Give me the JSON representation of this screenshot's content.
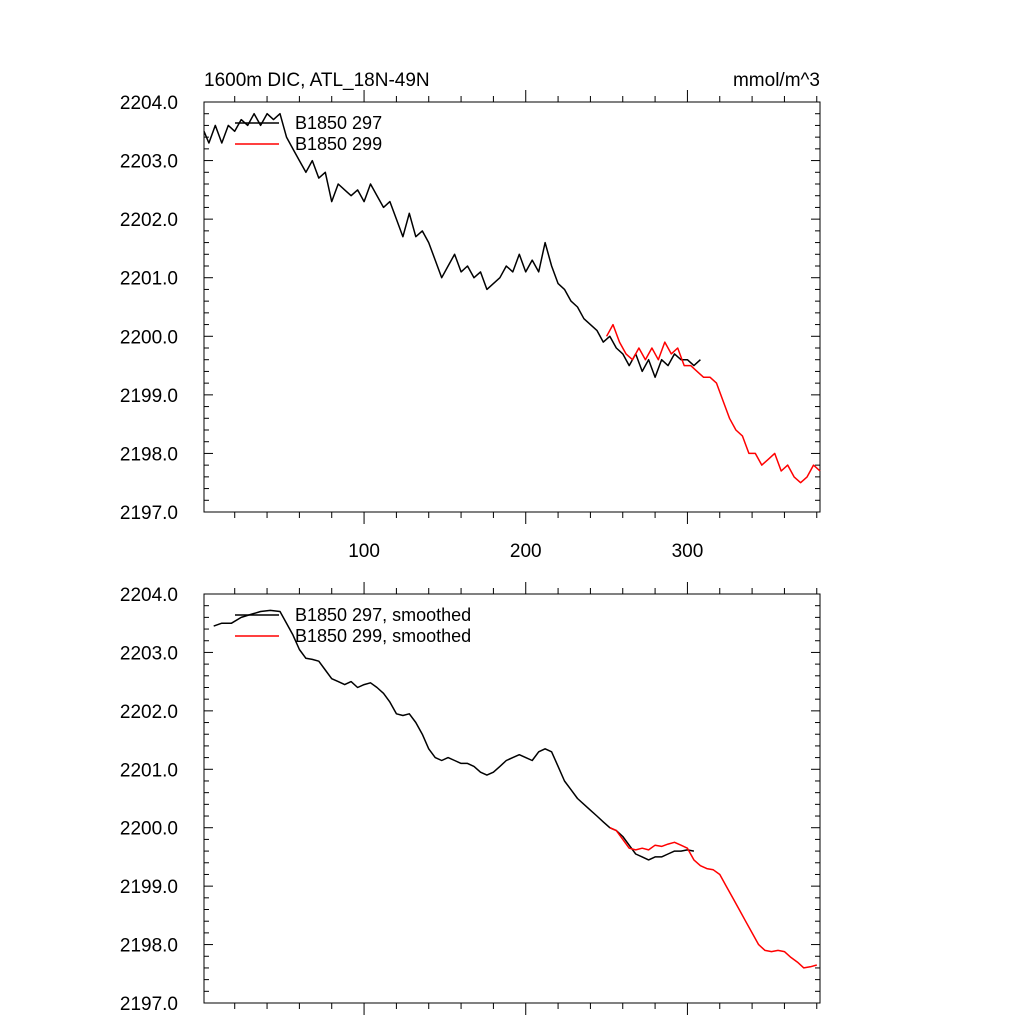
{
  "chart_data": [
    {
      "type": "line",
      "title_left": "1600m DIC, ATL_18N-49N",
      "title_right": "mmol/m^3",
      "xlabel": "",
      "ylabel": "",
      "xlim": [
        1,
        382
      ],
      "ylim": [
        2197.0,
        2204.0
      ],
      "y_ticks": [
        2197.0,
        2198.0,
        2199.0,
        2200.0,
        2201.0,
        2202.0,
        2203.0,
        2204.0
      ],
      "y_tick_labels": [
        "2197.0",
        "2198.0",
        "2199.0",
        "2200.0",
        "2201.0",
        "2202.0",
        "2203.0",
        "2204.0"
      ],
      "x_ticks": [
        100,
        200,
        300
      ],
      "x_tick_labels": [
        "100",
        "200",
        "300"
      ],
      "show_x_tick_labels": true,
      "legend_position": "top-left",
      "series": [
        {
          "name": "B1850 297",
          "color": "#000000",
          "x": [
            1,
            4,
            8,
            12,
            16,
            20,
            24,
            28,
            32,
            36,
            40,
            44,
            48,
            52,
            56,
            60,
            64,
            68,
            72,
            76,
            80,
            84,
            88,
            92,
            96,
            100,
            104,
            108,
            112,
            116,
            120,
            124,
            128,
            132,
            136,
            140,
            144,
            148,
            152,
            156,
            160,
            164,
            168,
            172,
            176,
            180,
            184,
            188,
            192,
            196,
            200,
            204,
            208,
            212,
            216,
            220,
            224,
            228,
            232,
            236,
            240,
            244,
            248,
            252,
            256,
            260,
            264,
            268,
            272,
            276,
            280,
            284,
            288,
            292,
            296,
            300,
            304,
            308
          ],
          "y": [
            2203.5,
            2203.3,
            2203.6,
            2203.3,
            2203.6,
            2203.5,
            2203.7,
            2203.6,
            2203.8,
            2203.6,
            2203.8,
            2203.7,
            2203.8,
            2203.4,
            2203.2,
            2203.0,
            2202.8,
            2203.0,
            2202.7,
            2202.8,
            2202.3,
            2202.6,
            2202.5,
            2202.4,
            2202.5,
            2202.3,
            2202.6,
            2202.4,
            2202.2,
            2202.3,
            2202.0,
            2201.7,
            2202.1,
            2201.7,
            2201.8,
            2201.6,
            2201.3,
            2201.0,
            2201.2,
            2201.4,
            2201.1,
            2201.2,
            2201.0,
            2201.1,
            2200.8,
            2200.9,
            2201.0,
            2201.2,
            2201.1,
            2201.4,
            2201.1,
            2201.3,
            2201.1,
            2201.6,
            2201.2,
            2200.9,
            2200.8,
            2200.6,
            2200.5,
            2200.3,
            2200.2,
            2200.1,
            2199.9,
            2200.0,
            2199.8,
            2199.7,
            2199.5,
            2199.7,
            2199.4,
            2199.6,
            2199.3,
            2199.6,
            2199.5,
            2199.7,
            2199.6,
            2199.6,
            2199.5,
            2199.6
          ]
        },
        {
          "name": "B1850 299",
          "color": "#ff0000",
          "x": [
            250,
            254,
            258,
            262,
            266,
            270,
            274,
            278,
            282,
            286,
            290,
            294,
            298,
            302,
            306,
            310,
            314,
            318,
            322,
            326,
            330,
            334,
            338,
            342,
            346,
            350,
            354,
            358,
            362,
            366,
            370,
            374,
            378,
            382
          ],
          "y": [
            2200.0,
            2200.2,
            2199.9,
            2199.7,
            2199.6,
            2199.8,
            2199.6,
            2199.8,
            2199.6,
            2199.9,
            2199.7,
            2199.8,
            2199.5,
            2199.5,
            2199.4,
            2199.3,
            2199.3,
            2199.2,
            2198.9,
            2198.6,
            2198.4,
            2198.3,
            2198.0,
            2198.0,
            2197.8,
            2197.9,
            2198.0,
            2197.7,
            2197.8,
            2197.6,
            2197.5,
            2197.6,
            2197.8,
            2197.7
          ]
        }
      ]
    },
    {
      "type": "line",
      "title_left": "",
      "title_right": "",
      "xlabel": "",
      "ylabel": "",
      "xlim": [
        1,
        382
      ],
      "ylim": [
        2197.0,
        2204.0
      ],
      "y_ticks": [
        2197.0,
        2198.0,
        2199.0,
        2200.0,
        2201.0,
        2202.0,
        2203.0,
        2204.0
      ],
      "y_tick_labels": [
        "2197.0",
        "2198.0",
        "2199.0",
        "2200.0",
        "2201.0",
        "2202.0",
        "2203.0",
        "2204.0"
      ],
      "x_ticks": [
        100,
        200,
        300
      ],
      "x_tick_labels": [],
      "show_x_tick_labels": false,
      "legend_position": "top-left",
      "series": [
        {
          "name": "B1850 297, smoothed",
          "color": "#000000",
          "x": [
            7,
            12,
            18,
            24,
            30,
            36,
            42,
            48,
            52,
            56,
            60,
            64,
            68,
            72,
            76,
            80,
            84,
            88,
            92,
            96,
            100,
            104,
            108,
            112,
            116,
            120,
            124,
            128,
            132,
            136,
            140,
            144,
            148,
            152,
            156,
            160,
            164,
            168,
            172,
            176,
            180,
            184,
            188,
            192,
            196,
            200,
            204,
            208,
            212,
            216,
            220,
            224,
            228,
            232,
            236,
            240,
            244,
            248,
            252,
            256,
            260,
            264,
            268,
            272,
            276,
            280,
            284,
            288,
            292,
            296,
            300,
            304
          ],
          "y": [
            2203.45,
            2203.5,
            2203.5,
            2203.6,
            2203.65,
            2203.7,
            2203.72,
            2203.7,
            2203.5,
            2203.3,
            2203.05,
            2202.9,
            2202.88,
            2202.85,
            2202.7,
            2202.55,
            2202.5,
            2202.45,
            2202.5,
            2202.4,
            2202.45,
            2202.48,
            2202.4,
            2202.3,
            2202.15,
            2201.95,
            2201.92,
            2201.95,
            2201.8,
            2201.6,
            2201.35,
            2201.2,
            2201.15,
            2201.2,
            2201.15,
            2201.1,
            2201.1,
            2201.05,
            2200.95,
            2200.9,
            2200.95,
            2201.05,
            2201.15,
            2201.2,
            2201.25,
            2201.2,
            2201.15,
            2201.3,
            2201.35,
            2201.3,
            2201.05,
            2200.8,
            2200.65,
            2200.5,
            2200.4,
            2200.3,
            2200.2,
            2200.1,
            2200.0,
            2199.95,
            2199.85,
            2199.7,
            2199.55,
            2199.5,
            2199.45,
            2199.5,
            2199.5,
            2199.55,
            2199.6,
            2199.6,
            2199.62,
            2199.6
          ]
        },
        {
          "name": "B1850 299, smoothed",
          "color": "#ff0000",
          "x": [
            252,
            256,
            260,
            264,
            268,
            272,
            276,
            280,
            284,
            288,
            292,
            296,
            300,
            304,
            308,
            312,
            316,
            320,
            324,
            328,
            332,
            336,
            340,
            344,
            348,
            352,
            356,
            360,
            364,
            368,
            372,
            376,
            380
          ],
          "y": [
            2200.0,
            2199.95,
            2199.8,
            2199.65,
            2199.62,
            2199.65,
            2199.62,
            2199.7,
            2199.68,
            2199.72,
            2199.75,
            2199.7,
            2199.65,
            2199.45,
            2199.35,
            2199.3,
            2199.28,
            2199.2,
            2199.0,
            2198.8,
            2198.6,
            2198.4,
            2198.2,
            2198.0,
            2197.9,
            2197.88,
            2197.9,
            2197.88,
            2197.78,
            2197.7,
            2197.6,
            2197.62,
            2197.65
          ]
        }
      ]
    }
  ]
}
